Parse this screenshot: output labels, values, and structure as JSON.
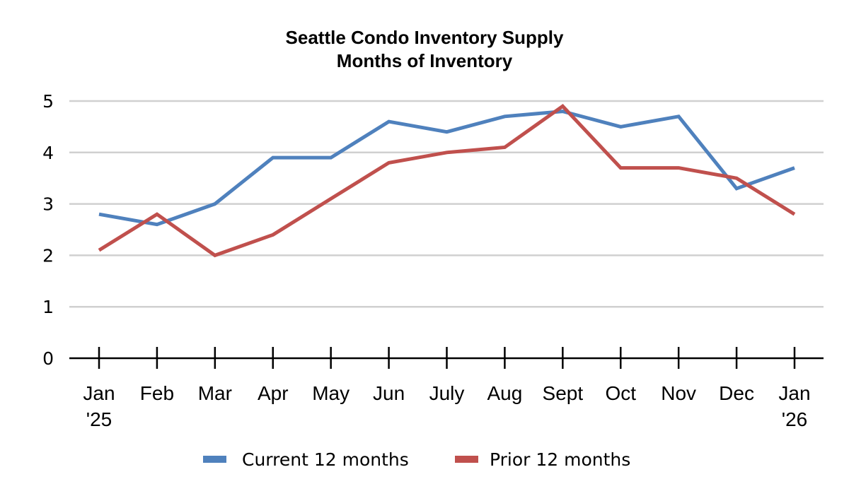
{
  "chart_data": {
    "type": "line",
    "title": "Seattle Condo Inventory Supply",
    "subtitle": "Months of Inventory",
    "xlabel": "",
    "ylabel": "",
    "categories": [
      {
        "line1": "Jan",
        "line2": "'25"
      },
      {
        "line1": "Feb",
        "line2": ""
      },
      {
        "line1": "Mar",
        "line2": ""
      },
      {
        "line1": "Apr",
        "line2": ""
      },
      {
        "line1": "May",
        "line2": ""
      },
      {
        "line1": "Jun",
        "line2": ""
      },
      {
        "line1": "July",
        "line2": ""
      },
      {
        "line1": "Aug",
        "line2": ""
      },
      {
        "line1": "Sept",
        "line2": ""
      },
      {
        "line1": "Oct",
        "line2": ""
      },
      {
        "line1": "Nov",
        "line2": ""
      },
      {
        "line1": "Dec",
        "line2": ""
      },
      {
        "line1": "Jan",
        "line2": "'26"
      }
    ],
    "yticks": [
      0,
      1,
      2,
      3,
      4,
      5
    ],
    "ylim": [
      0,
      5
    ],
    "grid": true,
    "legend_position": "bottom-center",
    "series": [
      {
        "name": "Current 12 months",
        "color": "#4F81BD",
        "values": [
          2.8,
          2.6,
          3.0,
          3.9,
          3.9,
          4.6,
          4.4,
          4.7,
          4.8,
          4.5,
          4.7,
          3.3,
          3.7
        ]
      },
      {
        "name": "Prior 12 months",
        "color": "#C0504D",
        "values": [
          2.1,
          2.8,
          2.0,
          2.4,
          3.1,
          3.8,
          4.0,
          4.1,
          4.9,
          3.7,
          3.7,
          3.5,
          2.8
        ]
      }
    ]
  }
}
